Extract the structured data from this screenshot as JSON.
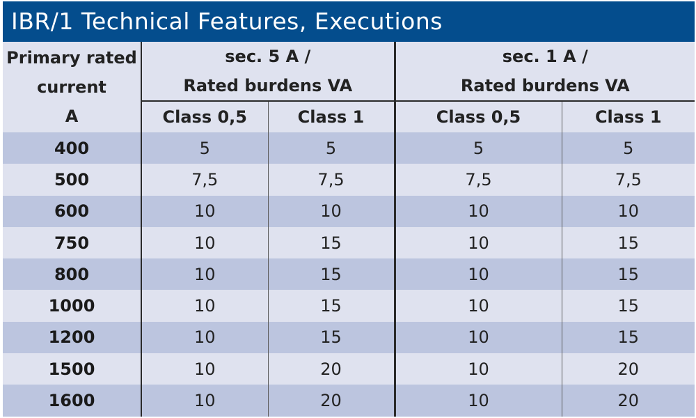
{
  "title": "IBR/1 Technical Features, Executions",
  "header": {
    "primary_lines": [
      "Primary rated",
      "current",
      "A"
    ],
    "group_sec5_lines": [
      "sec. 5 A /",
      "Rated burdens VA"
    ],
    "group_sec1_lines": [
      "sec. 1 A /",
      "Rated burdens VA"
    ],
    "sec5_class05": "Class 0,5",
    "sec5_class1": "Class 1",
    "sec1_class05": "Class 0,5",
    "sec1_class1": "Class 1"
  },
  "rows": [
    {
      "primary": "400",
      "s5_c05": "5",
      "s5_c1": "5",
      "s1_c05": "5",
      "s1_c1": "5"
    },
    {
      "primary": "500",
      "s5_c05": "7,5",
      "s5_c1": "7,5",
      "s1_c05": "7,5",
      "s1_c1": "7,5"
    },
    {
      "primary": "600",
      "s5_c05": "10",
      "s5_c1": "10",
      "s1_c05": "10",
      "s1_c1": "10"
    },
    {
      "primary": "750",
      "s5_c05": "10",
      "s5_c1": "15",
      "s1_c05": "10",
      "s1_c1": "15"
    },
    {
      "primary": "800",
      "s5_c05": "10",
      "s5_c1": "15",
      "s1_c05": "10",
      "s1_c1": "15"
    },
    {
      "primary": "1000",
      "s5_c05": "10",
      "s5_c1": "15",
      "s1_c05": "10",
      "s1_c1": "15"
    },
    {
      "primary": "1200",
      "s5_c05": "10",
      "s5_c1": "15",
      "s1_c05": "10",
      "s1_c1": "15"
    },
    {
      "primary": "1500",
      "s5_c05": "10",
      "s5_c1": "20",
      "s1_c05": "10",
      "s1_c1": "20"
    },
    {
      "primary": "1600",
      "s5_c05": "10",
      "s5_c1": "20",
      "s1_c05": "10",
      "s1_c1": "20"
    }
  ],
  "colors": {
    "title_bg": "#044d8d",
    "title_fg": "#ffffff",
    "row_dark": "#bcc5df",
    "row_light": "#dfe2ef"
  }
}
